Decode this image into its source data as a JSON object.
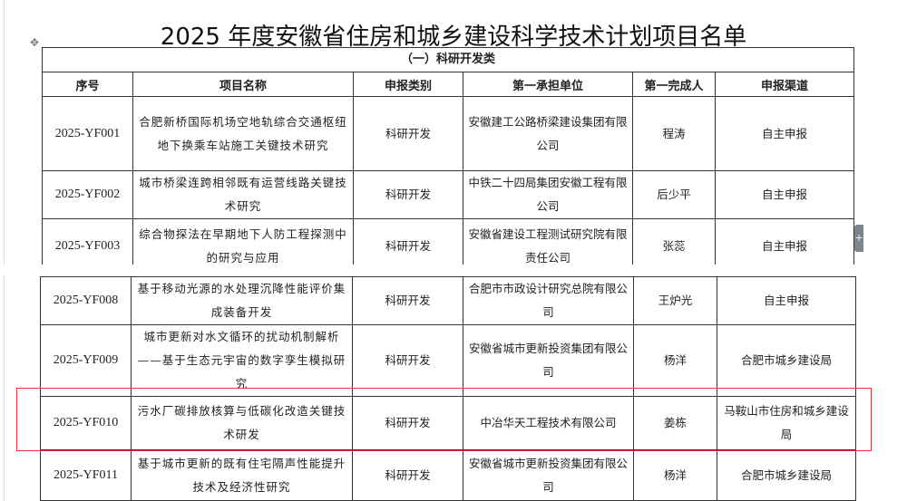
{
  "title": "2025 年度安徽省住房和城乡建设科学技术计划项目名单",
  "section": "（一）科研开发类",
  "headers": [
    "序号",
    "项目名称",
    "申报类别",
    "第一承担单位",
    "第一完成人",
    "申报渠道"
  ],
  "page1_rows": [
    {
      "id": "2025-YF001",
      "name": "合肥新桥国际机场空地轨综合交通枢纽地下换乘车站施工关键技术研究",
      "category": "科研开发",
      "unit": "安徽建工公路桥梁建设集团有限公司",
      "person": "程涛",
      "channel": "自主申报"
    },
    {
      "id": "2025-YF002",
      "name": "城市桥梁连跨相邻既有运营线路关键技术研究",
      "category": "科研开发",
      "unit": "中铁二十四局集团安徽工程有限公司",
      "person": "后少平",
      "channel": "自主申报"
    },
    {
      "id": "2025-YF003",
      "name": "综合物探法在早期地下人防工程探测中的研究与应用",
      "category": "科研开发",
      "unit": "安徽省建设工程测试研究院有限责任公司",
      "person": "张蕊",
      "channel": "自主申报"
    }
  ],
  "page2_rows": [
    {
      "id": "2025-YF008",
      "name": "基于移动光源的水处理沉降性能评价集成装备开发",
      "category": "科研开发",
      "unit": "合肥市市政设计研究总院有限公司",
      "person": "王炉光",
      "channel": "自主申报"
    },
    {
      "id": "2025-YF009",
      "name": "城市更新对水文循环的扰动机制解析——基于生态元宇宙的数字孪生模拟研究",
      "category": "科研开发",
      "unit": "安徽省城市更新投资集团有限公司",
      "person": "杨洋",
      "channel": "合肥市城乡建设局"
    },
    {
      "id": "2025-YF010",
      "name": "污水厂碳排放核算与低碳化改造关键技术研发",
      "category": "科研开发",
      "unit": "中冶华天工程技术有限公司",
      "person": "姜栋",
      "channel": "马鞍山市住房和城乡建设局",
      "highlighted": true
    },
    {
      "id": "2025-YF011",
      "name": "基于城市更新的既有住宅隔声性能提升技术及经济性研究",
      "category": "科研开发",
      "unit": "安徽省城市更新投资集团有限公司",
      "person": "杨洋",
      "channel": "合肥市城乡建设局"
    }
  ],
  "highlight_color": "#e33333"
}
